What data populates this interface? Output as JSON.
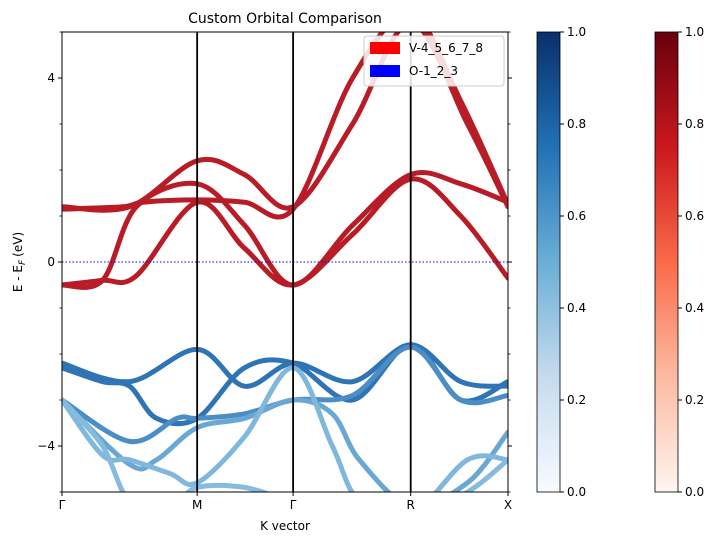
{
  "chart_data": {
    "type": "line",
    "title": "Custom Orbital Comparison",
    "xlabel": "K vector",
    "ylabel_main": "E - E",
    "ylabel_sub": "F",
    "ylabel_unit": "(eV)",
    "xlim": [
      0,
      3.3
    ],
    "ylim": [
      -5,
      5
    ],
    "kpoints": [
      {
        "label": "Γ",
        "x": 0
      },
      {
        "label": "M",
        "x": 1.0
      },
      {
        "label": "Γ",
        "x": 1.71
      },
      {
        "label": "R",
        "x": 2.58
      },
      {
        "label": "X",
        "x": 3.3
      }
    ],
    "yticks": [
      {
        "value": 4,
        "label": "4"
      },
      {
        "value": 0,
        "label": "0"
      },
      {
        "value": -4,
        "label": "−4"
      }
    ],
    "fermi_level": 0,
    "legend": {
      "placement": "top-right",
      "entries": [
        {
          "label": "V-4_5_6_7_8",
          "color": "#ff0000"
        },
        {
          "label": "O-1_2_3",
          "color": "#0000ff"
        }
      ]
    },
    "series": [
      {
        "group": "V",
        "color": "#b81c26",
        "x": [
          0,
          0.5,
          1.0,
          1.35,
          1.71,
          2.15,
          2.58,
          3.0,
          3.3
        ],
        "y": [
          1.2,
          1.2,
          2.2,
          1.9,
          1.2,
          3.0,
          5.2,
          3.0,
          1.2
        ]
      },
      {
        "group": "V",
        "color": "#b81c26",
        "x": [
          0,
          0.45,
          0.6,
          1.0,
          1.35,
          1.71,
          2.15,
          2.58,
          2.95,
          3.3
        ],
        "y": [
          1.15,
          1.2,
          1.3,
          1.35,
          1.3,
          1.15,
          4.0,
          5.4,
          3.5,
          1.25
        ]
      },
      {
        "group": "V",
        "color": "#b81c26",
        "x": [
          0,
          0.3,
          0.55,
          1.0,
          1.35,
          1.71,
          2.15,
          2.58,
          2.95,
          3.3
        ],
        "y": [
          -0.5,
          -0.4,
          1.2,
          1.7,
          0.8,
          -0.5,
          0.8,
          1.9,
          1.7,
          1.3
        ]
      },
      {
        "group": "V",
        "color": "#b81c26",
        "x": [
          0,
          0.3,
          0.55,
          1.0,
          1.35,
          1.71,
          2.15,
          2.58,
          2.95,
          3.3
        ],
        "y": [
          -0.5,
          -0.4,
          -0.3,
          1.3,
          0.3,
          -0.5,
          0.6,
          1.8,
          1.0,
          -0.35
        ]
      },
      {
        "group": "O",
        "color": "#2f74b5",
        "x": [
          0,
          0.5,
          1.0,
          1.35,
          1.71,
          2.15,
          2.58,
          2.95,
          3.3
        ],
        "y": [
          -2.2,
          -2.6,
          -1.9,
          -2.7,
          -2.2,
          -2.6,
          -1.8,
          -2.6,
          -2.7
        ]
      },
      {
        "group": "O",
        "color": "#2f74b5",
        "x": [
          0,
          0.3,
          0.5,
          0.7,
          1.0,
          1.35,
          1.71,
          2.15,
          2.58,
          2.95,
          3.3
        ],
        "y": [
          -2.3,
          -2.6,
          -2.7,
          -3.4,
          -3.4,
          -2.3,
          -2.2,
          -3.0,
          -1.8,
          -3.0,
          -2.6
        ]
      },
      {
        "group": "O",
        "color": "#4b8ec6",
        "x": [
          0,
          0.5,
          0.85,
          1.0,
          1.35,
          1.71,
          2.15,
          2.58,
          2.95,
          3.3
        ],
        "y": [
          -3.0,
          -3.9,
          -3.4,
          -3.4,
          -3.3,
          -3.0,
          -2.9,
          -1.85,
          -3.0,
          -2.9
        ]
      },
      {
        "group": "O",
        "color": "#6aa8d4",
        "x": [
          0,
          0.5,
          0.7,
          1.0,
          1.35,
          1.71,
          2.0,
          2.2,
          2.58,
          3.0,
          3.3
        ],
        "y": [
          -3.0,
          -4.4,
          -4.3,
          -3.6,
          -3.4,
          -3.0,
          -3.3,
          -4.3,
          -5.3,
          -4.8,
          -3.7
        ]
      },
      {
        "group": "O",
        "color": "#80b7dd",
        "x": [
          0,
          0.3,
          0.5,
          0.8,
          1.0,
          1.35,
          1.71,
          2.0,
          2.2,
          2.58,
          3.0,
          3.3
        ],
        "y": [
          -3.0,
          -4.2,
          -4.3,
          -4.6,
          -4.8,
          -3.8,
          -2.3,
          -4.0,
          -5.2,
          -5.5,
          -4.3,
          -4.3
        ]
      },
      {
        "group": "O",
        "color": "#86bbdf",
        "x": [
          0,
          0.3,
          0.5,
          0.8,
          1.0,
          1.35,
          1.71,
          2.2,
          2.58,
          3.0,
          3.3
        ],
        "y": [
          -3.0,
          -4.0,
          -5.2,
          -5.3,
          -4.9,
          -4.9,
          -5.2,
          -5.4,
          -5.5,
          -5.0,
          -4.3
        ]
      }
    ],
    "colorbars": [
      {
        "name": "blues",
        "ticks": [
          "0.0",
          "0.2",
          "0.4",
          "0.6",
          "0.8",
          "1.0"
        ],
        "stops": [
          "#f7fbff",
          "#c6dbef",
          "#6baed6",
          "#2171b5",
          "#08306b"
        ]
      },
      {
        "name": "reds",
        "ticks": [
          "0.0",
          "0.2",
          "0.4",
          "0.6",
          "0.8",
          "1.0"
        ],
        "stops": [
          "#fff5f0",
          "#fcbba1",
          "#fb6a4a",
          "#cb181d",
          "#67000d"
        ]
      }
    ]
  }
}
